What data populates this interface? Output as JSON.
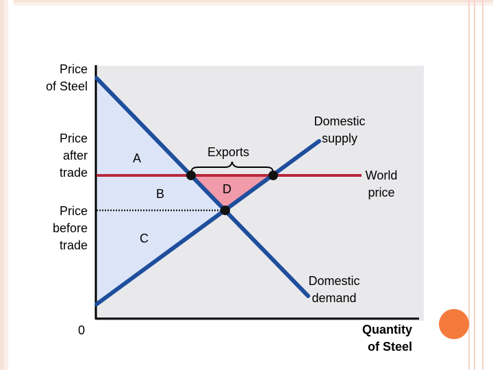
{
  "y_axis_label": "Price\nof Steel",
  "x_axis_label": "Quantity\nof Steel",
  "price_after_label": "Price\nafter\ntrade",
  "price_before_label": "Price\nbefore\ntrade",
  "origin_label": "0",
  "exports_label": "Exports",
  "supply_label": "Domestic\nsupply",
  "demand_label": "Domestic\ndemand",
  "world_price_label": "World\nprice",
  "areas": {
    "a": "A",
    "b": "B",
    "c": "C",
    "d": "D"
  },
  "colors": {
    "curve": "#1f4e9c",
    "world_price": "#b7283c",
    "region_fill": "#dce5f8",
    "triangle_fill": "#f09aaa",
    "accent": "#f47b3c"
  }
}
